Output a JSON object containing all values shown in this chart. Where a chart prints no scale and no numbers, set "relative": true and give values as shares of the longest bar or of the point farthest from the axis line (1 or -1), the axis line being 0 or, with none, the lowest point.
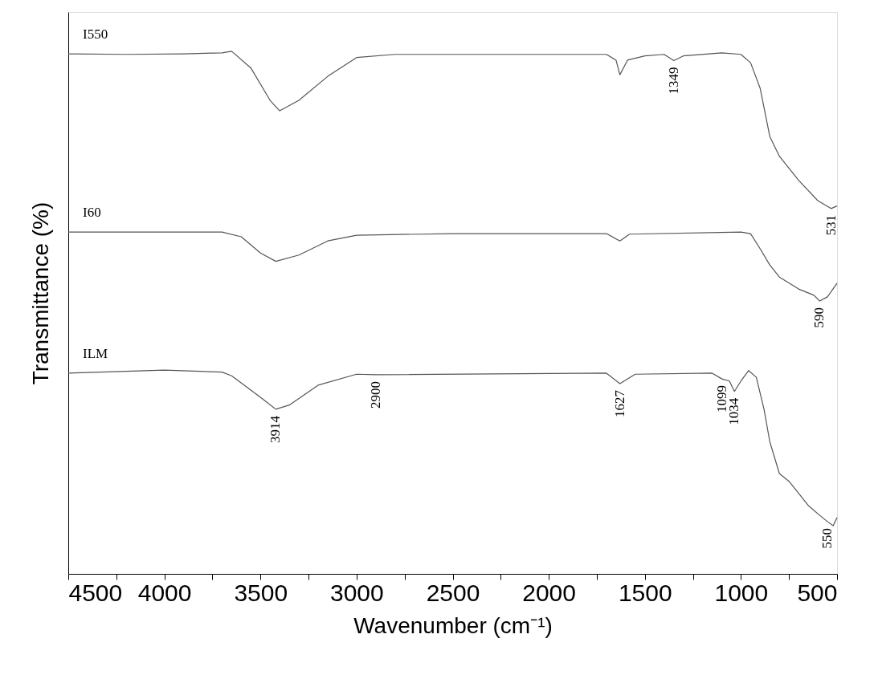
{
  "chart_data": {
    "type": "line",
    "relative": true,
    "xlabel": "Wavenumber (cm⁻¹)",
    "ylabel": "Transmittance (%)",
    "xlim": [
      4500,
      500
    ],
    "xticks": [
      4500,
      {
        "value": 4250,
        "label": null
      },
      4000,
      {
        "value": 3750,
        "label": null
      },
      3500,
      {
        "value": 3250,
        "label": null
      },
      3000,
      {
        "value": 2750,
        "label": null
      },
      2500,
      {
        "value": 2250,
        "label": null
      },
      2000,
      {
        "value": 1750,
        "label": null
      },
      1500,
      {
        "value": 1250,
        "label": null
      },
      1000,
      {
        "value": 750,
        "label": null
      },
      500
    ],
    "series": [
      {
        "name": "I550",
        "color": "#555555",
        "x": [
          4500,
          4200,
          3900,
          3700,
          3650,
          3550,
          3450,
          3400,
          3300,
          3150,
          3000,
          2800,
          2000,
          1700,
          1650,
          1630,
          1590,
          1500,
          1400,
          1349,
          1300,
          1100,
          1000,
          950,
          900,
          850,
          800,
          700,
          600,
          531,
          500
        ],
        "values": [
          0.995,
          0.994,
          0.995,
          0.997,
          1.0,
          0.968,
          0.906,
          0.886,
          0.906,
          0.952,
          0.988,
          0.994,
          0.994,
          0.994,
          0.983,
          0.955,
          0.983,
          0.991,
          0.994,
          0.982,
          0.991,
          0.997,
          0.994,
          0.978,
          0.929,
          0.837,
          0.799,
          0.753,
          0.714,
          0.699,
          0.704
        ]
      },
      {
        "name": "I60",
        "color": "#555555",
        "x": [
          4500,
          3700,
          3600,
          3500,
          3420,
          3300,
          3150,
          3000,
          2500,
          1700,
          1630,
          1580,
          1000,
          950,
          900,
          850,
          800,
          700,
          620,
          590,
          550,
          500
        ],
        "values": [
          0.654,
          0.654,
          0.645,
          0.614,
          0.598,
          0.61,
          0.637,
          0.648,
          0.651,
          0.651,
          0.637,
          0.65,
          0.654,
          0.651,
          0.622,
          0.591,
          0.568,
          0.545,
          0.533,
          0.522,
          0.53,
          0.556
        ]
      },
      {
        "name": "ILM",
        "color": "#555555",
        "x": [
          4500,
          4000,
          3700,
          3650,
          3500,
          3420,
          3350,
          3200,
          3000,
          2900,
          1700,
          1630,
          1550,
          1150,
          1099,
          1060,
          1034,
          1000,
          960,
          920,
          880,
          850,
          800,
          750,
          700,
          650,
          600,
          550,
          520,
          500
        ],
        "values": [
          0.384,
          0.39,
          0.386,
          0.379,
          0.338,
          0.315,
          0.323,
          0.361,
          0.382,
          0.381,
          0.384,
          0.364,
          0.382,
          0.384,
          0.373,
          0.369,
          0.349,
          0.369,
          0.389,
          0.376,
          0.315,
          0.253,
          0.192,
          0.177,
          0.154,
          0.131,
          0.115,
          0.1,
          0.092,
          0.108
        ]
      }
    ],
    "annotations": [
      {
        "text": "3914",
        "x": 3420,
        "y": 0.315
      },
      {
        "text": "2900",
        "x": 2900,
        "y": 0.381
      },
      {
        "text": "1627",
        "x": 1630,
        "y": 0.364
      },
      {
        "text": "1099",
        "x": 1099,
        "y": 0.373
      },
      {
        "text": "1034",
        "x": 1034,
        "y": 0.349
      },
      {
        "text": "1349",
        "x": 1349,
        "y": 0.982
      },
      {
        "text": "531",
        "x": 531,
        "y": 0.699
      },
      {
        "text": "590",
        "x": 590,
        "y": 0.522
      },
      {
        "text": "550",
        "x": 550,
        "y": 0.1
      }
    ]
  }
}
